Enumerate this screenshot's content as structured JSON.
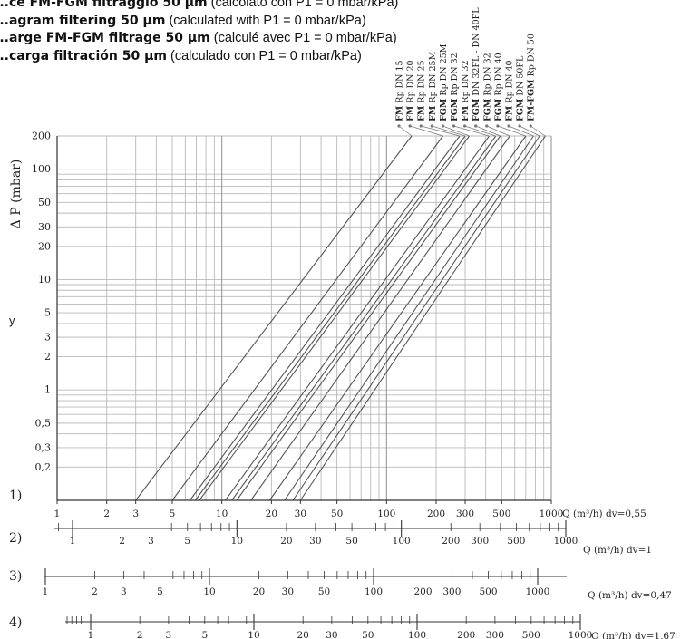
{
  "titles": [
    {
      "bold": "...ce FM-FGM filtraggio 50 µm",
      "rest": " (calcolato con P1 = 0 mbar/kPa)"
    },
    {
      "bold": "...agram filtering 50 µm",
      "rest": " (calculated with P1 = 0 mbar/kPa)"
    },
    {
      "bold": "...arge FM-FGM filtrage 50 µm",
      "rest": " (calculé avec P1 = 0 mbar/kPa)"
    },
    {
      "bold": "...carga filtración 50 µm",
      "rest": " (calculado con P1 = 0 mbar/kPa)"
    }
  ],
  "side_mark": "y",
  "colors": {
    "grid": "#b9b9b9",
    "line": "#555555",
    "axis": "#333333",
    "text": "#222222"
  },
  "chart_data": {
    "type": "line",
    "x_scale": "log",
    "y_scale": "log",
    "xlim": [
      1,
      1000
    ],
    "ylim": [
      0.1,
      200
    ],
    "ylabel": "Δ P (mbar)",
    "y_ticks": [
      "200",
      "100",
      "50",
      "30",
      "20",
      "10",
      "5",
      "3",
      "2",
      "1",
      "0,5",
      "0,3",
      "0,2"
    ],
    "y_tick_values": [
      200,
      100,
      50,
      30,
      20,
      10,
      5,
      3,
      2,
      1,
      0.5,
      0.3,
      0.2
    ],
    "series": [
      {
        "name": "FM Rp DN 15",
        "bold": "FM",
        "rest": " Rp DN 15",
        "x": [
          3.0,
          142
        ],
        "y": [
          0.1,
          200
        ]
      },
      {
        "name": "FM Rp DN 20",
        "bold": "FM",
        "rest": " Rp DN 20",
        "x": [
          5.0,
          220
        ],
        "y": [
          0.1,
          200
        ]
      },
      {
        "name": "FM Rp DN 25",
        "bold": "FM",
        "rest": " Rp DN 25",
        "x": [
          6.4,
          278
        ],
        "y": [
          0.1,
          200
        ]
      },
      {
        "name": "FM Rp DN 25M",
        "bold": "FM",
        "rest": " Rp DN 25M",
        "x": [
          6.9,
          300
        ],
        "y": [
          0.1,
          200
        ]
      },
      {
        "name": "FGM Rp DN 25M",
        "bold": "FGM",
        "rest": " Rp DN 25M",
        "x": [
          7.3,
          318
        ],
        "y": [
          0.1,
          200
        ]
      },
      {
        "name": "FGM Rp DN 32",
        "bold": "FGM",
        "rest": " Rp DN 32",
        "x": [
          10.5,
          420
        ],
        "y": [
          0.1,
          200
        ]
      },
      {
        "name": "FM Rp DN 32",
        "bold": "FM",
        "rest": " Rp DN 32",
        "x": [
          11.5,
          460
        ],
        "y": [
          0.1,
          200
        ]
      },
      {
        "name": "FGM DN 32FL - DN 40FL",
        "bold": "FGM",
        "rest": " DN 32FL - DN 40FL",
        "x": [
          12.3,
          490
        ],
        "y": [
          0.1,
          200
        ]
      },
      {
        "name": "FGM Rp DN 32",
        "bold": "FGM",
        "rest": " Rp DN 32",
        "x": [
          15.0,
          560
        ],
        "y": [
          0.1,
          200
        ]
      },
      {
        "name": "FGM Rp DN 40",
        "bold": "FGM",
        "rest": " Rp DN 40",
        "x": [
          19.5,
          700
        ],
        "y": [
          0.1,
          200
        ]
      },
      {
        "name": "FM Rp DN 40",
        "bold": "FM",
        "rest": " Rp DN 40",
        "x": [
          24.0,
          780
        ],
        "y": [
          0.1,
          200
        ]
      },
      {
        "name": "FGM DN 50FL",
        "bold": "FGM",
        "rest": " DN 50FL",
        "x": [
          27.0,
          850
        ],
        "y": [
          0.1,
          200
        ]
      },
      {
        "name": "FM-FGM Rp DN 50",
        "bold": "FM-FGM",
        "rest": " Rp DN 50",
        "x": [
          30.0,
          920
        ],
        "y": [
          0.1,
          200
        ]
      }
    ],
    "x_scales": [
      {
        "label": "1)",
        "suffix": "Q (m³/h)  dv=0,55",
        "ticks": [
          "1",
          "2",
          "3",
          "5",
          "10",
          "20",
          "30",
          "50",
          "100",
          "200",
          "300",
          "500",
          "1000"
        ]
      },
      {
        "label": "2)",
        "suffix": "Q (m³/h)  dv=1",
        "ticks": [
          "1",
          "2",
          "3",
          "5",
          "10",
          "20",
          "30",
          "50",
          "100",
          "200",
          "300",
          "500",
          "1000"
        ]
      },
      {
        "label": "3)",
        "suffix": "Q (m³/h)  dv=0,47",
        "ticks": [
          "1",
          "2",
          "3",
          "5",
          "10",
          "20",
          "30",
          "50",
          "100",
          "200",
          "300",
          "500",
          "1000"
        ]
      },
      {
        "label": "4)",
        "suffix": "Q (m³/h)  dv=1,67",
        "ticks": [
          "1",
          "2",
          "3",
          "5",
          "10",
          "20",
          "30",
          "50",
          "100",
          "200",
          "300",
          "500",
          "1000"
        ]
      }
    ]
  }
}
